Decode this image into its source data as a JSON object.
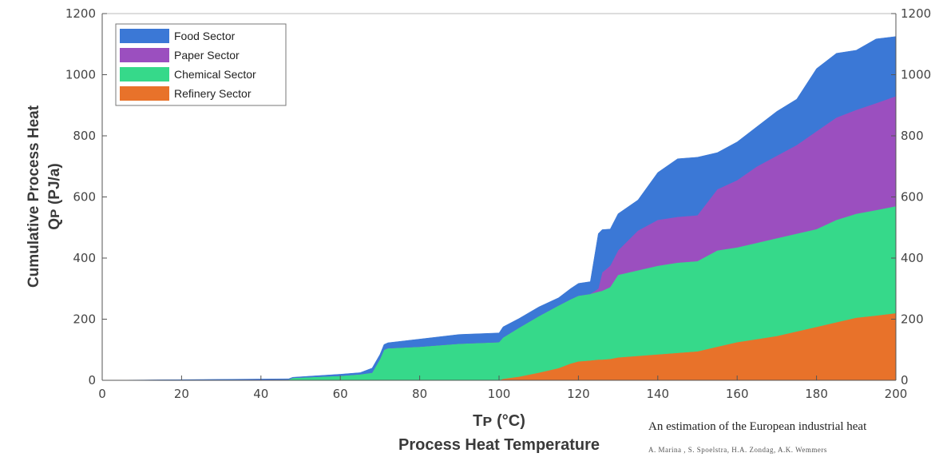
{
  "chart_data": {
    "type": "area",
    "stacked": true,
    "x": [
      0,
      47,
      48,
      60,
      65,
      68,
      70,
      71,
      72,
      80,
      90,
      100,
      101,
      105,
      110,
      115,
      118,
      120,
      123,
      125,
      126,
      128,
      130,
      135,
      140,
      145,
      150,
      155,
      160,
      165,
      170,
      175,
      180,
      185,
      190,
      195,
      200
    ],
    "series": [
      {
        "name": "Refinery Sector",
        "color": "#e8722a",
        "values": [
          0,
          0,
          0,
          0,
          0,
          0,
          0,
          0,
          0,
          0,
          0,
          0,
          5,
          12,
          25,
          40,
          55,
          62,
          65,
          68,
          68,
          70,
          75,
          80,
          85,
          90,
          95,
          110,
          125,
          135,
          145,
          160,
          175,
          190,
          205,
          212,
          220
        ]
      },
      {
        "name": "Chemical Sector",
        "color": "#36d98a",
        "values": [
          0,
          3,
          8,
          15,
          20,
          25,
          70,
          100,
          105,
          110,
          120,
          125,
          135,
          160,
          185,
          205,
          210,
          215,
          218,
          222,
          225,
          235,
          270,
          280,
          290,
          295,
          295,
          315,
          310,
          315,
          320,
          320,
          320,
          335,
          340,
          345,
          350
        ]
      },
      {
        "name": "Paper Sector",
        "color": "#9b4fbf",
        "values": [
          0,
          0,
          0,
          0,
          0,
          0,
          0,
          0,
          0,
          0,
          0,
          0,
          0,
          0,
          0,
          0,
          0,
          0,
          0,
          10,
          60,
          70,
          80,
          130,
          150,
          150,
          150,
          200,
          220,
          250,
          270,
          290,
          320,
          335,
          340,
          350,
          360
        ]
      },
      {
        "name": "Food Sector",
        "color": "#3b78d6",
        "values": [
          0,
          2,
          2,
          5,
          5,
          15,
          15,
          17,
          18,
          25,
          30,
          30,
          35,
          30,
          30,
          25,
          35,
          40,
          40,
          180,
          140,
          120,
          120,
          100,
          155,
          190,
          190,
          120,
          125,
          130,
          145,
          150,
          205,
          210,
          195,
          210,
          195
        ]
      }
    ],
    "legend": [
      "Food Sector",
      "Paper Sector",
      "Chemical Sector",
      "Refinery Sector"
    ],
    "legend_placement": "top-left",
    "xlim": [
      0,
      200
    ],
    "ylim": [
      0,
      1200
    ],
    "xticks": [
      "0",
      "20",
      "40",
      "60",
      "80",
      "100",
      "120",
      "140",
      "160",
      "180",
      "200"
    ],
    "yticks": [
      "0",
      "200",
      "400",
      "600",
      "800",
      "1000",
      "1200"
    ],
    "xlabel_line1": "Tᴘ (°C)",
    "xlabel_line2": "Process Heat Temperature",
    "ylabel_line1": "Cumulative Process Heat",
    "ylabel_line2": "Qᴘ (PJ/a)",
    "grid": false,
    "right_axis": true
  },
  "caption": {
    "title": "An estimation of the European industrial heat",
    "authors": "A. Marina , S. Spoelstra, H.A. Zondag, A.K. Wemmers"
  }
}
